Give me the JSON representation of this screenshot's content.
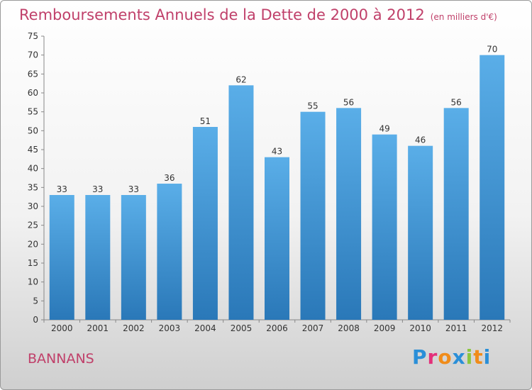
{
  "header": {
    "title": "Remboursements Annuels de la Dette de 2000 à 2012",
    "subtitle": "(en milliers d'€)"
  },
  "commune": "BANNANS",
  "logo": {
    "letters": [
      "P",
      "r",
      "o",
      "x",
      "i",
      "t",
      "i"
    ],
    "colors": [
      "#2a8fd8",
      "#e4307a",
      "#f08c1a",
      "#2a8fd8",
      "#8cc63f",
      "#f08c1a",
      "#2a8fd8"
    ]
  },
  "chart_data": {
    "type": "bar",
    "title": "Remboursements Annuels de la Dette de 2000 à 2012",
    "subtitle": "(en milliers d'€)",
    "categories": [
      "2000",
      "2001",
      "2002",
      "2003",
      "2004",
      "2005",
      "2006",
      "2007",
      "2008",
      "2009",
      "2010",
      "2011",
      "2012"
    ],
    "values": [
      33,
      33,
      33,
      36,
      51,
      62,
      43,
      55,
      56,
      49,
      46,
      56,
      70
    ],
    "ylim": [
      0,
      75
    ],
    "yticks": [
      0,
      5,
      10,
      15,
      20,
      25,
      30,
      35,
      40,
      45,
      50,
      55,
      60,
      65,
      70,
      75
    ],
    "grid": false,
    "bar_color_top": "#5aaee8",
    "bar_color_bottom": "#2a78b8"
  }
}
